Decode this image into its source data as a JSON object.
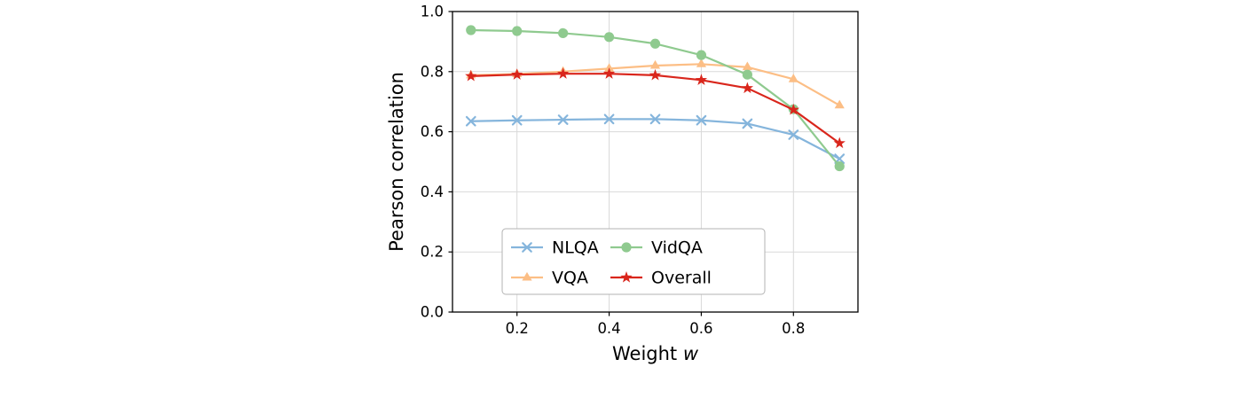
{
  "chart_data": {
    "type": "line",
    "title": "",
    "xlabel": "Weight w",
    "xlabel_parts": [
      "Weight ",
      "w"
    ],
    "ylabel": "Pearson correlation",
    "x": [
      0.1,
      0.2,
      0.3,
      0.4,
      0.5,
      0.6,
      0.7,
      0.8,
      0.9
    ],
    "xlim": [
      0.06,
      0.94
    ],
    "ylim": [
      0.0,
      1.0
    ],
    "xticks": [
      0.2,
      0.4,
      0.6,
      0.8
    ],
    "yticks": [
      0.0,
      0.2,
      0.4,
      0.6,
      0.8,
      1.0
    ],
    "grid": true,
    "legend_position": "lower center inside",
    "legend": {
      "order": [
        "NLQA",
        "VQA",
        "VidQA",
        "Overall"
      ],
      "ncol": 2
    },
    "series": [
      {
        "name": "NLQA",
        "color": "#85b5dc",
        "marker": "x",
        "values": [
          0.635,
          0.638,
          0.64,
          0.642,
          0.642,
          0.638,
          0.627,
          0.59,
          0.51
        ]
      },
      {
        "name": "VQA",
        "color": "#fcbe85",
        "marker": "triangle",
        "values": [
          0.788,
          0.792,
          0.8,
          0.81,
          0.82,
          0.825,
          0.815,
          0.775,
          0.688
        ]
      },
      {
        "name": "VidQA",
        "color": "#8fca8f",
        "marker": "circle",
        "values": [
          0.938,
          0.935,
          0.928,
          0.915,
          0.893,
          0.855,
          0.79,
          0.675,
          0.485
        ]
      },
      {
        "name": "Overall",
        "color": "#d9261c",
        "marker": "star",
        "values": [
          0.785,
          0.79,
          0.793,
          0.793,
          0.788,
          0.772,
          0.745,
          0.673,
          0.562
        ]
      }
    ],
    "style": {
      "grid_color": "#d9d9d9",
      "spine_color": "#000000",
      "legend_border_color": "#b3b3b3",
      "background": "#ffffff"
    }
  }
}
